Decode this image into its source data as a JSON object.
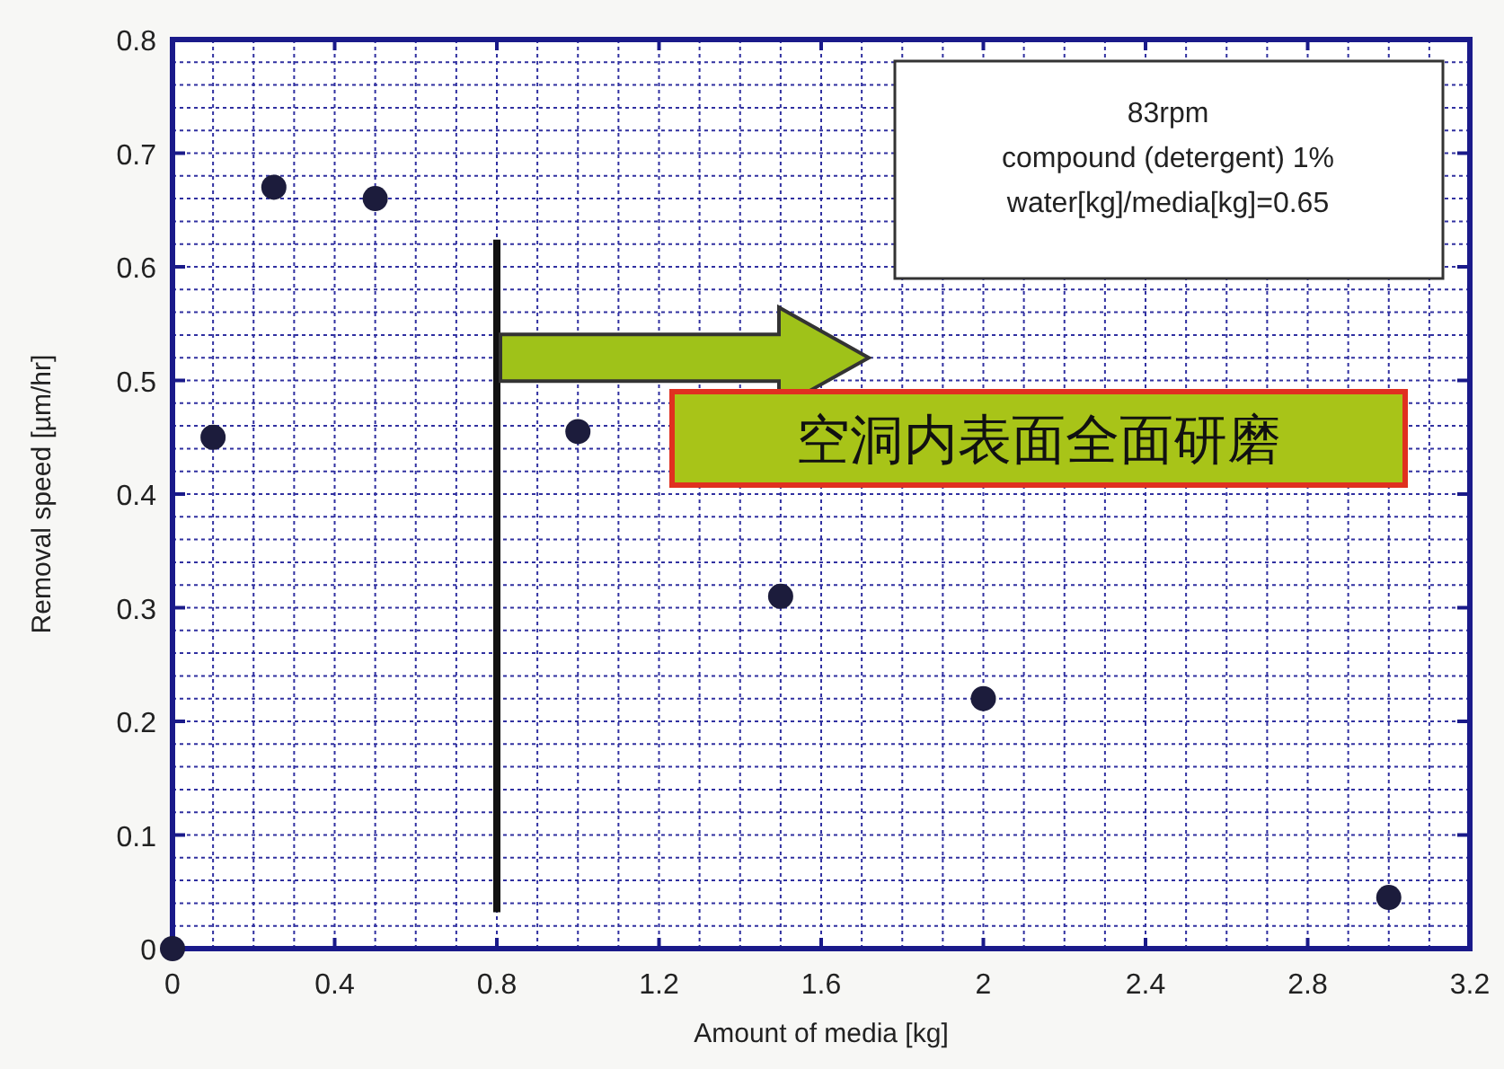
{
  "chart_data": {
    "type": "scatter",
    "xlabel": "Amount of media [kg]",
    "ylabel": "Removal speed [µm/hr]",
    "x": [
      0,
      0.1,
      0.25,
      0.5,
      1.0,
      1.5,
      2.0,
      3.0
    ],
    "values": [
      0,
      0.45,
      0.67,
      0.66,
      0.455,
      0.31,
      0.22,
      0.045
    ],
    "color": "#1c1c3c",
    "marker": "circle",
    "xlim": [
      0,
      3.2
    ],
    "xticks": [
      0,
      0.4,
      0.8,
      1.2,
      1.6,
      2,
      2.4,
      2.8,
      3.2
    ],
    "ylim": [
      0,
      0.8
    ],
    "yticks": [
      0,
      0.1,
      0.2,
      0.3,
      0.4,
      0.5,
      0.6,
      0.7,
      0.8
    ],
    "grid": true,
    "ref_lines": [
      {
        "axis": "x",
        "value": 0.8,
        "color": "#111111"
      }
    ],
    "annotations": [
      "83rpm",
      "compound (detergent) 1%",
      "water[kg]/media[kg]=0.65",
      "空洞内表面全面研磨"
    ]
  }
}
